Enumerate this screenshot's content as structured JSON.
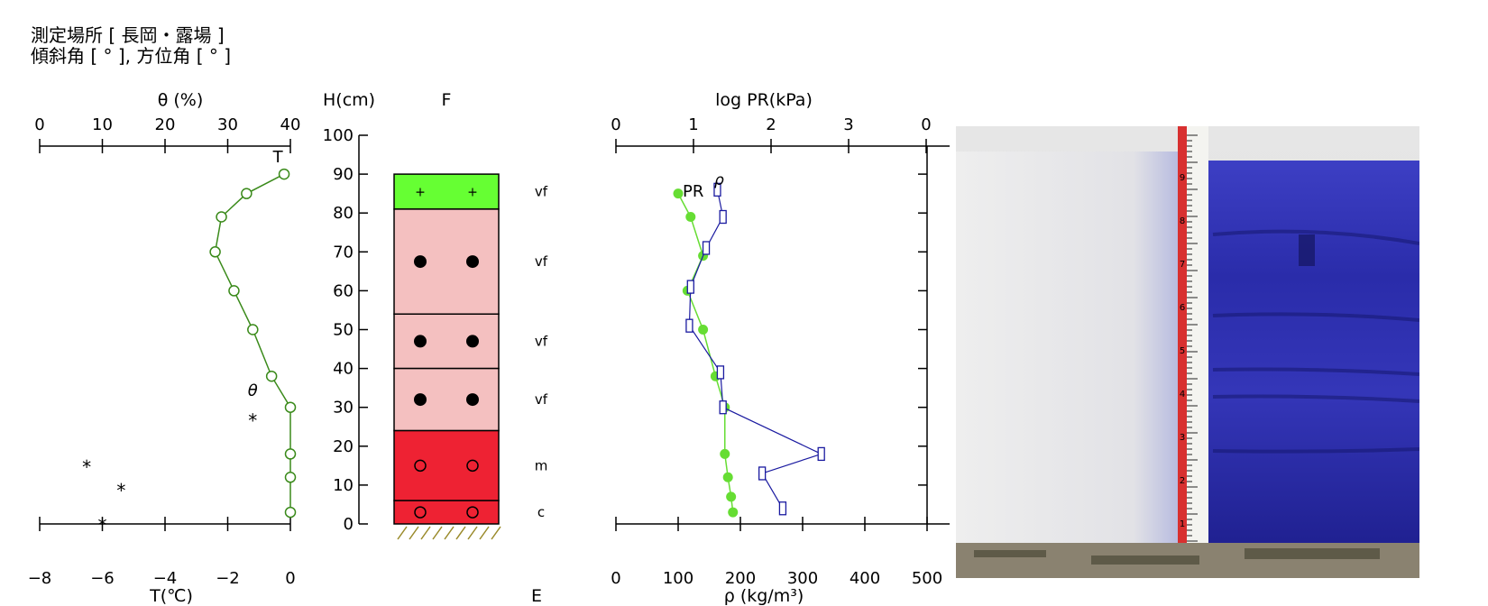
{
  "header": {
    "line1": "測定場所 [ 長岡・露場 ]",
    "line2": "傾斜角 [ ° ], 方位角 [ ° ]"
  },
  "chart_data": [
    {
      "type": "scatter",
      "xlabel_top": "θ (%)",
      "xlabel_bottom": "T(℃)",
      "ylabel": "H(cm)",
      "xlim_top": [
        0,
        40
      ],
      "xticks_top": [
        "0",
        "10",
        "20",
        "30",
        "40"
      ],
      "xlim_bottom": [
        -8,
        0
      ],
      "xticks_bottom": [
        "−8",
        "−6",
        "−4",
        "−2",
        "0"
      ],
      "ylim": [
        0,
        100
      ],
      "yticks": [
        "0",
        "10",
        "20",
        "30",
        "40",
        "50",
        "60",
        "70",
        "80",
        "90",
        "100"
      ],
      "series": [
        {
          "name": "θ",
          "axis": "top",
          "color": "#3a8a1a",
          "marker": "open-circle",
          "points": [
            [
              39,
              90
            ],
            [
              33,
              85
            ],
            [
              29,
              79
            ],
            [
              28,
              70
            ],
            [
              31,
              60
            ],
            [
              34,
              50
            ],
            [
              37,
              38
            ],
            [
              40,
              30
            ],
            [
              40,
              18
            ],
            [
              40,
              12
            ],
            [
              40,
              3
            ]
          ]
        },
        {
          "name": "T",
          "axis": "bottom",
          "marker": "asterisk",
          "color": "#000000",
          "points": [
            [
              -1.2,
              28
            ],
            [
              -6.5,
              16
            ],
            [
              -5.4,
              10
            ],
            [
              -6,
              1
            ]
          ]
        }
      ],
      "labels": {
        "theta": "θ",
        "t": "T"
      }
    },
    {
      "type": "table",
      "title": "F",
      "bottom_label": "E",
      "layers": [
        {
          "bottom": 81,
          "top": 90,
          "color": "#66ff33",
          "symbol": "+",
          "label": "vf"
        },
        {
          "bottom": 54,
          "top": 81,
          "color": "#f4c0c0",
          "symbol": "●",
          "label": "vf"
        },
        {
          "bottom": 40,
          "top": 54,
          "color": "#f4c0c0",
          "symbol": "●",
          "label": "vf"
        },
        {
          "bottom": 24,
          "top": 40,
          "color": "#f4c0c0",
          "symbol": "●",
          "label": "vf"
        },
        {
          "bottom": 6,
          "top": 24,
          "color": "#ee2233",
          "symbol": "○",
          "label": "m"
        },
        {
          "bottom": 0,
          "top": 6,
          "color": "#ee2233",
          "symbol": "○",
          "label": "c"
        }
      ],
      "ground_color": "#9a8a2a"
    },
    {
      "type": "line",
      "xlabel_top": "log PR(kPa)",
      "xticks_top": [
        "0",
        "1",
        "2",
        "3",
        "0"
      ],
      "xlabel_bottom": "ρ (kg/m³)",
      "xlim_bottom": [
        0,
        500
      ],
      "xticks_bottom": [
        "0",
        "100",
        "200",
        "300",
        "400",
        "500"
      ],
      "ylim": [
        0,
        100
      ],
      "series": [
        {
          "name": "PR",
          "color": "#66dd33",
          "marker": "filled-circle",
          "points": [
            [
              100,
              85
            ],
            [
              120,
              79
            ],
            [
              140,
              69
            ],
            [
              115,
              60
            ],
            [
              140,
              50
            ],
            [
              160,
              38
            ],
            [
              175,
              30
            ],
            [
              175,
              18
            ],
            [
              180,
              12
            ],
            [
              185,
              7
            ],
            [
              188,
              3
            ]
          ]
        },
        {
          "name": "ρ",
          "color": "#1a1aa0",
          "marker": "open-square",
          "points": [
            [
              163,
              86
            ],
            [
              172,
              79
            ],
            [
              145,
              71
            ],
            [
              120,
              61
            ],
            [
              118,
              51
            ],
            [
              168,
              39
            ],
            [
              172,
              30
            ],
            [
              330,
              18
            ],
            [
              235,
              13
            ],
            [
              268,
              4
            ]
          ]
        }
      ],
      "labels": {
        "pr": "PR",
        "rho": "ρ"
      }
    }
  ],
  "photo": {
    "snow_color": "#e8e8e8",
    "dye_color": "#2a2ab0",
    "scale_color": "#d83030",
    "scale_numbers": [
      "9",
      "8",
      "7",
      "6",
      "5",
      "4",
      "3",
      "2",
      "1"
    ]
  }
}
